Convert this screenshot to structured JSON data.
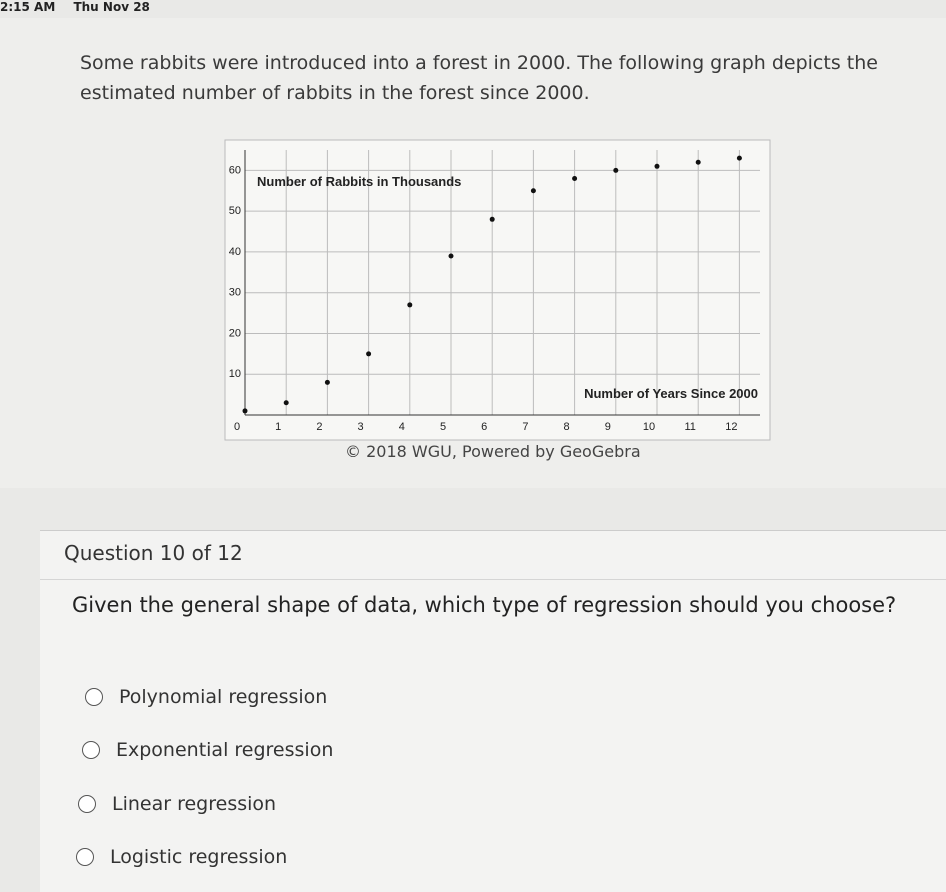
{
  "status_bar": {
    "time": "2:15 AM",
    "date": "Thu Nov 28"
  },
  "intro": "Some rabbits were introduced into a forest in 2000. The following graph depicts the estimated number of rabbits in the forest since 2000.",
  "chart_data": {
    "type": "scatter",
    "y_label": "Number of Rabbits in Thousands",
    "x_label": "Number of Years Since 2000",
    "x": [
      0,
      1,
      2,
      3,
      4,
      5,
      6,
      7,
      8,
      9,
      10,
      11,
      12
    ],
    "values": [
      1,
      3,
      8,
      15,
      27,
      39,
      48,
      55,
      58,
      60,
      61,
      62,
      63
    ],
    "color": "#111111",
    "xlim": [
      0,
      12.5
    ],
    "ylim": [
      0,
      65
    ],
    "xticks": [
      0,
      1,
      2,
      3,
      4,
      5,
      6,
      7,
      8,
      9,
      10,
      11,
      12
    ],
    "yticks": [
      10,
      20,
      30,
      40,
      50,
      60
    ],
    "grid": true
  },
  "caption": "© 2018 WGU, Powered by GeoGebra",
  "question": {
    "header": "Question 10 of 12",
    "prompt": "Given the general shape of data, which type of regression should you choose?",
    "options": [
      "Polynomial regression",
      "Exponential regression",
      "Linear regression",
      "Logistic regression"
    ]
  }
}
